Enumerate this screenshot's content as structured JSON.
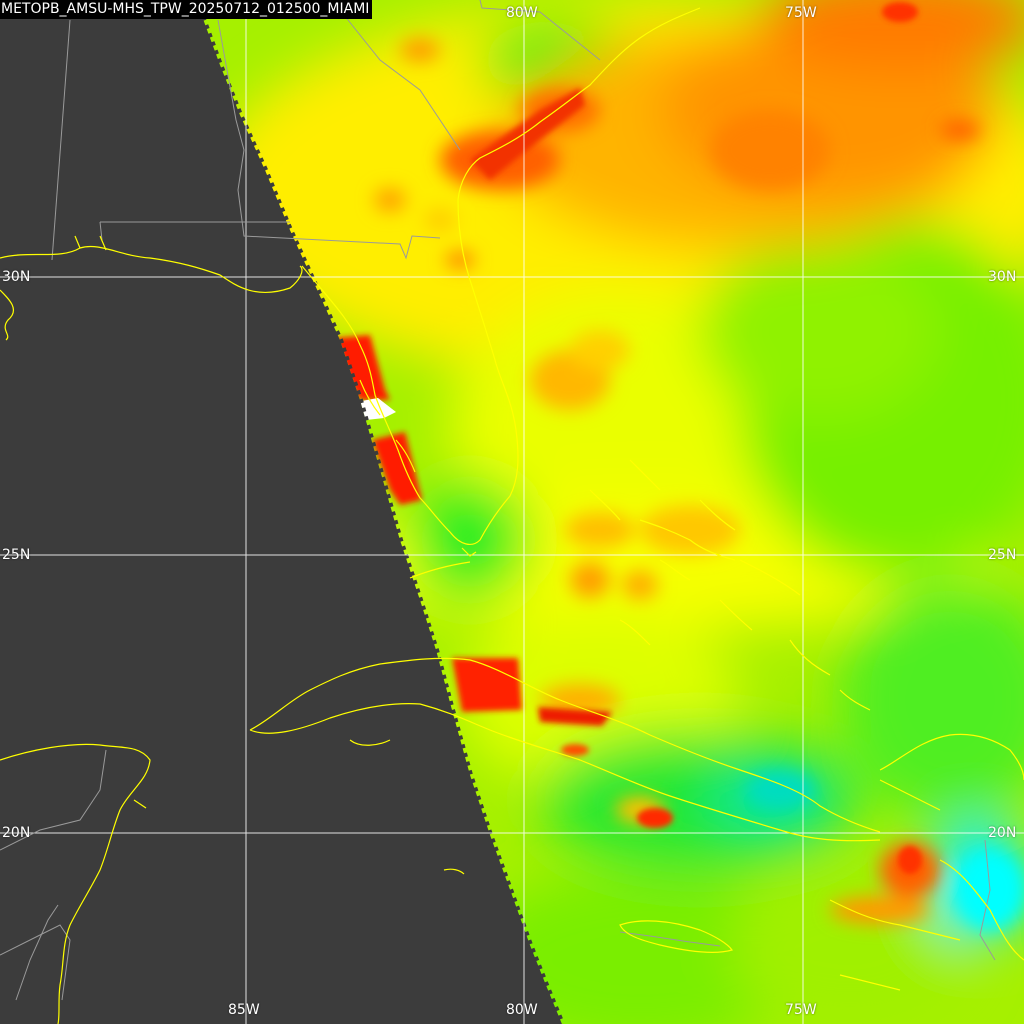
{
  "product_title": "METOPB_AMSU-MHS_TPW_20250712_012500_MIAMI",
  "grid_labels": {
    "lon_80w_top": "80W",
    "lon_75w_top": "75W",
    "lat_30n_left": "30N",
    "lat_30n_right": "30N",
    "lat_25n_left": "25N",
    "lat_25n_right": "25N",
    "lat_20n_left": "20N",
    "lat_20n_right": "20N",
    "lon_85w_bottom": "85W",
    "lon_80w_bottom": "80W",
    "lon_75w_bottom": "75W"
  },
  "colors": {
    "no_data_background": "#3c3c3c",
    "grid_lines": "#ffffff",
    "coastlines": "#ffff00",
    "political_borders": "#9a9a9a",
    "tpw_scale_low_to_high": [
      "#00ffff",
      "#00ee30",
      "#80ff00",
      "#ffff00",
      "#ffa000",
      "#ff2000",
      "#ffffff"
    ]
  },
  "swath_edge": "western edge of satellite swath runs from the top near 87W to the bottom near 79W"
}
